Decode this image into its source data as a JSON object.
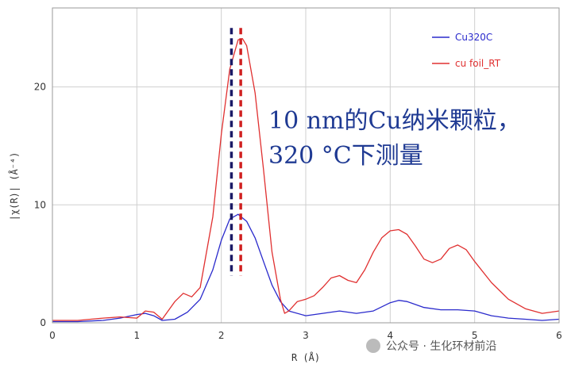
{
  "chart_data": {
    "type": "line",
    "xlabel": "R (Å)",
    "ylabel": "|χ(R)| (Å⁻⁴)",
    "xlim": [
      0,
      6
    ],
    "ylim": [
      0,
      26.7
    ],
    "xticks": [
      0,
      1,
      2,
      3,
      4,
      5,
      6
    ],
    "yticks": [
      0,
      10,
      20
    ],
    "grid": true,
    "legend_position": "top-right",
    "series": [
      {
        "name": "Cu320C",
        "color": "#2a2acc",
        "x": [
          0,
          0.3,
          0.6,
          0.8,
          1.0,
          1.1,
          1.2,
          1.3,
          1.45,
          1.6,
          1.75,
          1.9,
          2.0,
          2.1,
          2.2,
          2.3,
          2.4,
          2.5,
          2.6,
          2.7,
          2.8,
          3.0,
          3.2,
          3.4,
          3.6,
          3.8,
          4.0,
          4.1,
          4.2,
          4.4,
          4.6,
          4.8,
          5.0,
          5.2,
          5.4,
          5.6,
          5.8,
          6.0
        ],
        "y": [
          0.1,
          0.1,
          0.2,
          0.4,
          0.7,
          0.8,
          0.6,
          0.2,
          0.3,
          0.9,
          2.0,
          4.5,
          7.0,
          8.8,
          9.2,
          8.6,
          7.2,
          5.2,
          3.2,
          1.8,
          1.0,
          0.6,
          0.8,
          1.0,
          0.8,
          1.0,
          1.7,
          1.9,
          1.8,
          1.3,
          1.1,
          1.1,
          1.0,
          0.6,
          0.4,
          0.3,
          0.2,
          0.3
        ]
      },
      {
        "name": "cu foil_RT",
        "color": "#e03030",
        "x": [
          0,
          0.3,
          0.6,
          0.8,
          1.0,
          1.1,
          1.2,
          1.3,
          1.45,
          1.55,
          1.65,
          1.75,
          1.9,
          2.0,
          2.1,
          2.2,
          2.25,
          2.3,
          2.4,
          2.5,
          2.6,
          2.7,
          2.75,
          2.8,
          2.9,
          3.0,
          3.1,
          3.2,
          3.3,
          3.4,
          3.5,
          3.6,
          3.7,
          3.8,
          3.9,
          4.0,
          4.1,
          4.2,
          4.3,
          4.4,
          4.5,
          4.6,
          4.7,
          4.8,
          4.9,
          5.0,
          5.2,
          5.4,
          5.6,
          5.8,
          6.0
        ],
        "y": [
          0.2,
          0.2,
          0.4,
          0.5,
          0.4,
          1.0,
          0.9,
          0.3,
          1.8,
          2.5,
          2.2,
          3.0,
          9.0,
          16.0,
          21.5,
          24.0,
          24.1,
          23.5,
          19.5,
          13.0,
          6.0,
          2.0,
          0.8,
          1.0,
          1.8,
          2.0,
          2.3,
          3.0,
          3.8,
          4.0,
          3.6,
          3.4,
          4.5,
          6.0,
          7.2,
          7.8,
          7.9,
          7.5,
          6.5,
          5.4,
          5.1,
          5.4,
          6.3,
          6.6,
          6.2,
          5.2,
          3.4,
          2.0,
          1.2,
          0.8,
          1.0
        ]
      }
    ],
    "markers": [
      {
        "x": 2.12,
        "color": "#1a1a66",
        "style": "dashed"
      },
      {
        "x": 2.23,
        "color": "#d02020",
        "style": "dashed"
      }
    ],
    "annotation_lines": [
      "10 nm的Cu纳米颗粒，",
      "320 °C下测量"
    ]
  },
  "watermark": "公众号 · 生化环材前沿"
}
